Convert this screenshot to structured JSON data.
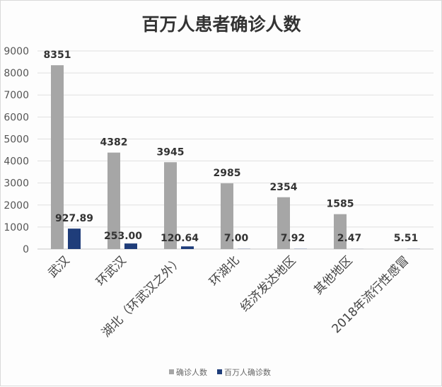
{
  "chart_data": {
    "type": "bar",
    "title": "百万人患者确诊人数",
    "xlabel": "",
    "ylabel": "",
    "ylim": [
      0,
      9000
    ],
    "yticks": [
      0,
      1000,
      2000,
      3000,
      4000,
      5000,
      6000,
      7000,
      8000,
      9000
    ],
    "grid": true,
    "legend_position": "bottom",
    "categories": [
      "武汉",
      "环武汉",
      "湖北（环武汉之外）",
      "环湖北",
      "经济发达地区",
      "其他地区",
      "2018年流行性感冒"
    ],
    "series": [
      {
        "name": "确诊人数",
        "color": "#a6a6a6",
        "values": [
          8351,
          4382,
          3945,
          2985,
          2354,
          1585,
          null
        ],
        "labels": [
          "8351",
          "4382",
          "3945",
          "2985",
          "2354",
          "1585",
          ""
        ]
      },
      {
        "name": "百万人确诊数",
        "color": "#1f3d7a",
        "values": [
          927.89,
          253.0,
          120.64,
          7.0,
          7.92,
          2.47,
          5.51
        ],
        "labels": [
          "927.89",
          "253.00",
          "120.64",
          "7.00",
          "7.92",
          "2.47",
          "5.51"
        ]
      }
    ]
  }
}
